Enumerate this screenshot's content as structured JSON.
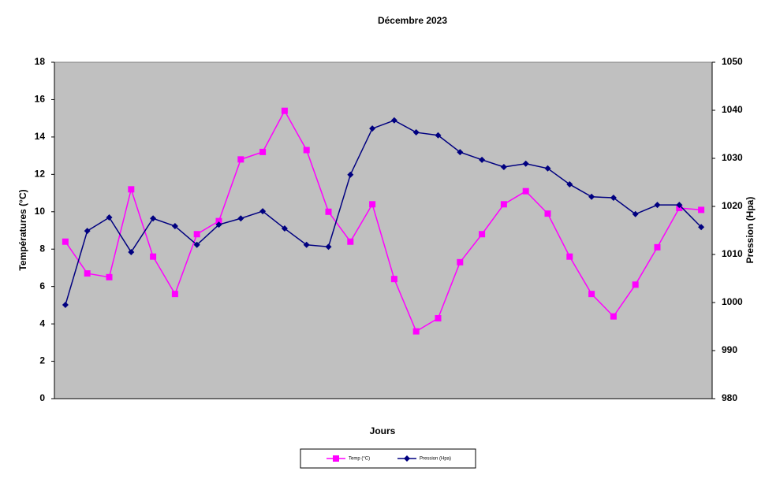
{
  "chart_data": {
    "type": "line",
    "title": "Décembre 2023",
    "xlabel": "Jours",
    "ylabel": "Températures (°C)",
    "y2label": "Pression (Hpa)",
    "categories": [
      null,
      null,
      null,
      null,
      null,
      null,
      null,
      null,
      null,
      null,
      null,
      null,
      null,
      null,
      null,
      null,
      null,
      null,
      null,
      null,
      null,
      null,
      null,
      null,
      null,
      null,
      null,
      null,
      null,
      null
    ],
    "series": [
      {
        "name": "Temp (°C)",
        "color": "#ff00ff",
        "marker": "square",
        "values": [
          8.4,
          6.7,
          6.5,
          11.2,
          7.6,
          5.6,
          8.8,
          9.5,
          12.8,
          13.2,
          15.4,
          13.3,
          10.0,
          8.4,
          10.4,
          6.4,
          3.6,
          4.3,
          7.3,
          8.8,
          10.4,
          11.1,
          9.9,
          7.6,
          5.6,
          4.4,
          6.1,
          8.1,
          10.2,
          10.1
        ]
      },
      {
        "name": "Pression (Hpa)",
        "color": "#000080",
        "marker": "diamond",
        "axis": "y2",
        "values": [
          999.5,
          1014.9,
          1017.7,
          1010.5,
          1017.5,
          1015.9,
          1012.0,
          1016.2,
          1017.5,
          1019.0,
          1015.4,
          1012.0,
          1011.6,
          1026.6,
          1036.2,
          1037.9,
          1035.4,
          1034.8,
          1031.3,
          1029.7,
          1028.2,
          1028.9,
          1027.9,
          1024.6,
          1022.0,
          1021.8,
          1018.4,
          1020.3,
          1020.3,
          1015.7
        ]
      }
    ],
    "ylim": [
      0,
      18
    ],
    "yticks": [
      0,
      2,
      4,
      6,
      8,
      10,
      12,
      14,
      16,
      18
    ],
    "y2lim": [
      980,
      1050
    ],
    "y2ticks": [
      980,
      990,
      1000,
      1010,
      1020,
      1030,
      1040,
      1050
    ],
    "plot_background": "#c0c0c0",
    "legend": "bottom"
  }
}
